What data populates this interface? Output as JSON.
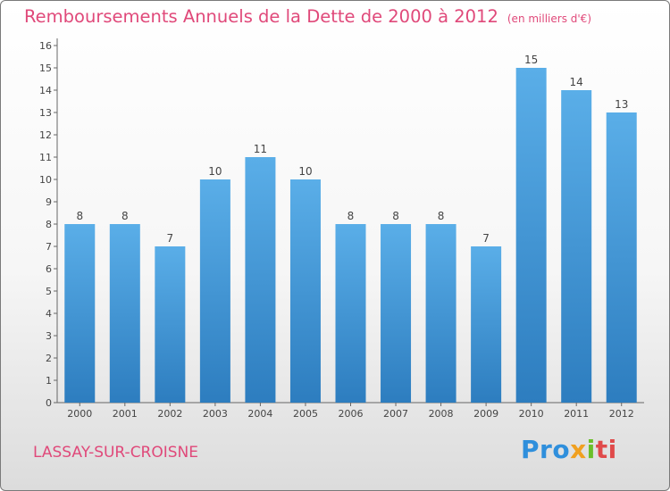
{
  "chart_data": {
    "type": "bar",
    "title": "Remboursements Annuels de la Dette de 2000 à 2012",
    "unit_note": "(en milliers d'€)",
    "categories": [
      "2000",
      "2001",
      "2002",
      "2003",
      "2004",
      "2005",
      "2006",
      "2007",
      "2008",
      "2009",
      "2010",
      "2011",
      "2012"
    ],
    "values": [
      8,
      8,
      7,
      10,
      11,
      10,
      8,
      8,
      8,
      7,
      15,
      14,
      13
    ],
    "ylim": [
      0,
      16
    ],
    "yticks": [
      0,
      1,
      2,
      3,
      4,
      5,
      6,
      7,
      8,
      9,
      10,
      11,
      12,
      13,
      14,
      15,
      16
    ],
    "xlabel": "",
    "ylabel": "",
    "grid": false,
    "bar_color_top": "#5aaee8",
    "bar_color_bottom": "#2d7dbf"
  },
  "footer": {
    "location": "LASSAY-SUR-CROISNE",
    "logo_parts": [
      "Pro",
      "x",
      "i",
      "ti"
    ]
  }
}
